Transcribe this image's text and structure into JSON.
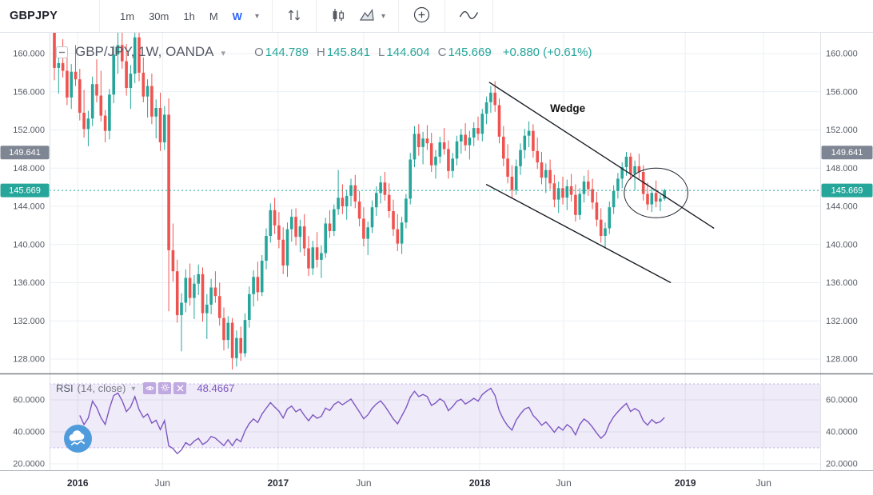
{
  "toolbar": {
    "symbol": "GBPJPY",
    "intervals": [
      "1m",
      "30m",
      "1h",
      "M",
      "W"
    ],
    "active_interval": "W"
  },
  "legend": {
    "title": "GBP/JPY, 1W, OANDA",
    "open_label": "O",
    "open_value": "144.789",
    "high_label": "H",
    "high_value": "145.841",
    "low_label": "L",
    "low_value": "144.604",
    "close_label": "C",
    "close_value": "145.669",
    "change": "+0.880 (+0.61%)"
  },
  "rsi_legend": {
    "title": "RSI",
    "params": "(14, close)",
    "value": "48.4667"
  },
  "chart_data": {
    "type": "candlestick",
    "symbol": "GBP/JPY",
    "timeframe": "1W",
    "exchange": "OANDA",
    "title": "GBP/JPY 1W candlestick chart with falling wedge annotation and RSI(14)",
    "colors": {
      "up": "#26a69a",
      "down": "#ef5350",
      "rsi": "#7e57c2",
      "current_line": "#26a69a",
      "grid": "#eceff3"
    },
    "price_axis": {
      "ticks": [
        160,
        156,
        152,
        148,
        144,
        140,
        136,
        132,
        128
      ],
      "decimals": 3
    },
    "current_price": 145.669,
    "price_badges": [
      {
        "label": "149.641",
        "price": 149.641,
        "color": "#7f8693"
      },
      {
        "label": "145.669",
        "price": 145.669,
        "color": "#26a69a"
      }
    ],
    "time_ticks": [
      {
        "label": "2016",
        "i": 5.5,
        "major": true
      },
      {
        "label": "Jun",
        "i": 25.5,
        "major": false
      },
      {
        "label": "2017",
        "i": 52.8,
        "major": true
      },
      {
        "label": "Jun",
        "i": 73.0,
        "major": false
      },
      {
        "label": "2018",
        "i": 100.4,
        "major": true
      },
      {
        "label": "Jun",
        "i": 120.2,
        "major": false
      },
      {
        "label": "2019",
        "i": 148.9,
        "major": true
      },
      {
        "label": "Jun",
        "i": 167.4,
        "major": false
      }
    ],
    "annotations": {
      "wedge_label": "Wedge",
      "wedge_label_pos": {
        "i": 117.0,
        "p": 153.9
      },
      "wedge_upper": [
        {
          "i": 102.6,
          "p": 157.0
        },
        {
          "i": 155.7,
          "p": 141.7
        }
      ],
      "wedge_lower": [
        {
          "i": 101.9,
          "p": 146.3
        },
        {
          "i": 145.5,
          "p": 136.0
        }
      ],
      "ellipse": {
        "i": 142.0,
        "p": 145.4,
        "ri": 7.5,
        "rp": 2.6
      }
    },
    "rsi": {
      "period": 14,
      "source": "close",
      "last_value": 48.4667,
      "band": [
        30,
        70
      ],
      "ticks": [
        60,
        40,
        20
      ],
      "decimals": 4
    },
    "ohlc": [
      [
        162.8,
        163.9,
        157.2,
        158.5
      ],
      [
        158.5,
        160.2,
        155.8,
        159.0
      ],
      [
        159.0,
        161.5,
        157.5,
        158.2
      ],
      [
        158.2,
        159.8,
        154.6,
        155.4
      ],
      [
        155.4,
        158.9,
        154.2,
        158.1
      ],
      [
        158.1,
        160.9,
        156.6,
        157.3
      ],
      [
        157.3,
        158.4,
        153.0,
        153.8
      ],
      [
        153.8,
        156.2,
        151.2,
        152.1
      ],
      [
        152.1,
        154.0,
        150.3,
        153.2
      ],
      [
        153.2,
        157.6,
        152.4,
        156.8
      ],
      [
        156.8,
        159.4,
        154.9,
        155.6
      ],
      [
        155.6,
        158.2,
        152.9,
        153.5
      ],
      [
        153.5,
        154.1,
        150.7,
        151.9
      ],
      [
        151.9,
        156.3,
        151.0,
        155.7
      ],
      [
        155.7,
        160.8,
        154.8,
        159.9
      ],
      [
        159.9,
        162.6,
        157.9,
        160.9
      ],
      [
        160.9,
        163.2,
        158.4,
        159.2
      ],
      [
        159.2,
        161.0,
        155.6,
        156.4
      ],
      [
        156.4,
        158.8,
        154.2,
        157.9
      ],
      [
        157.9,
        162.8,
        156.9,
        161.7
      ],
      [
        161.7,
        162.4,
        157.1,
        158.0
      ],
      [
        158.0,
        159.6,
        154.9,
        155.5
      ],
      [
        155.5,
        157.3,
        153.3,
        156.6
      ],
      [
        156.6,
        157.9,
        152.6,
        153.4
      ],
      [
        153.4,
        155.2,
        151.1,
        154.3
      ],
      [
        154.3,
        155.9,
        149.8,
        150.7
      ],
      [
        150.7,
        154.5,
        149.9,
        153.6
      ],
      [
        153.6,
        155.3,
        133.0,
        139.4
      ],
      [
        139.4,
        142.2,
        136.1,
        137.2
      ],
      [
        137.2,
        138.4,
        131.8,
        132.6
      ],
      [
        132.6,
        134.9,
        128.8,
        133.9
      ],
      [
        133.9,
        137.4,
        132.9,
        136.5
      ],
      [
        136.5,
        138.0,
        133.6,
        134.4
      ],
      [
        134.4,
        136.8,
        132.2,
        135.9
      ],
      [
        135.9,
        137.9,
        134.7,
        136.9
      ],
      [
        136.9,
        137.6,
        131.9,
        132.8
      ],
      [
        132.8,
        134.8,
        130.1,
        133.7
      ],
      [
        133.7,
        136.4,
        132.7,
        135.5
      ],
      [
        135.5,
        137.2,
        133.9,
        134.6
      ],
      [
        134.6,
        136.0,
        131.5,
        132.3
      ],
      [
        132.3,
        133.4,
        128.9,
        130.0
      ],
      [
        130.0,
        132.5,
        129.1,
        131.8
      ],
      [
        131.8,
        132.3,
        126.9,
        128.1
      ],
      [
        128.1,
        131.0,
        127.2,
        130.2
      ],
      [
        130.2,
        131.4,
        127.8,
        128.6
      ],
      [
        128.6,
        132.8,
        128.2,
        132.1
      ],
      [
        132.1,
        135.6,
        131.3,
        134.8
      ],
      [
        134.8,
        137.3,
        133.5,
        136.6
      ],
      [
        136.6,
        138.2,
        134.1,
        135.0
      ],
      [
        135.0,
        138.9,
        134.6,
        138.3
      ],
      [
        138.3,
        141.7,
        137.4,
        140.9
      ],
      [
        140.9,
        144.3,
        140.2,
        143.6
      ],
      [
        143.6,
        144.9,
        141.1,
        142.0
      ],
      [
        142.0,
        143.4,
        139.6,
        140.5
      ],
      [
        140.5,
        141.8,
        136.9,
        137.8
      ],
      [
        137.8,
        142.3,
        136.6,
        141.6
      ],
      [
        141.6,
        143.7,
        140.3,
        142.9
      ],
      [
        142.9,
        143.8,
        139.9,
        140.8
      ],
      [
        140.8,
        142.6,
        139.2,
        141.9
      ],
      [
        141.9,
        143.2,
        138.8,
        139.6
      ],
      [
        139.6,
        140.9,
        136.7,
        137.5
      ],
      [
        137.5,
        140.4,
        136.8,
        139.7
      ],
      [
        139.7,
        141.3,
        137.6,
        138.4
      ],
      [
        138.4,
        139.9,
        136.5,
        139.1
      ],
      [
        139.1,
        142.8,
        138.6,
        142.2
      ],
      [
        142.2,
        143.6,
        140.7,
        141.4
      ],
      [
        141.4,
        144.2,
        140.9,
        143.7
      ],
      [
        143.7,
        147.8,
        143.1,
        144.9
      ],
      [
        144.9,
        146.3,
        143.2,
        144.0
      ],
      [
        144.0,
        145.7,
        142.6,
        145.1
      ],
      [
        145.1,
        146.9,
        144.0,
        146.2
      ],
      [
        146.2,
        147.3,
        143.8,
        144.5
      ],
      [
        144.5,
        145.6,
        141.9,
        142.7
      ],
      [
        142.7,
        143.9,
        139.8,
        140.6
      ],
      [
        140.6,
        142.4,
        138.9,
        141.8
      ],
      [
        141.8,
        144.6,
        141.2,
        143.9
      ],
      [
        143.9,
        146.1,
        143.0,
        145.4
      ],
      [
        145.4,
        147.2,
        144.3,
        146.5
      ],
      [
        146.5,
        147.6,
        144.6,
        145.2
      ],
      [
        145.2,
        146.4,
        142.8,
        143.5
      ],
      [
        143.5,
        144.7,
        140.9,
        141.6
      ],
      [
        141.6,
        143.2,
        139.3,
        140.1
      ],
      [
        140.1,
        142.9,
        139.0,
        142.3
      ],
      [
        142.3,
        145.3,
        141.7,
        144.8
      ],
      [
        144.8,
        149.6,
        144.2,
        148.9
      ],
      [
        148.9,
        152.4,
        148.1,
        151.6
      ],
      [
        151.6,
        152.6,
        149.3,
        150.2
      ],
      [
        150.2,
        151.8,
        148.4,
        151.1
      ],
      [
        151.1,
        152.5,
        149.9,
        150.6
      ],
      [
        150.6,
        151.7,
        147.6,
        148.3
      ],
      [
        148.3,
        149.9,
        146.9,
        149.2
      ],
      [
        149.2,
        151.3,
        148.5,
        150.7
      ],
      [
        150.7,
        152.2,
        149.4,
        150.0
      ],
      [
        150.0,
        150.9,
        146.9,
        147.7
      ],
      [
        147.7,
        149.6,
        147.0,
        149.0
      ],
      [
        149.0,
        151.4,
        148.3,
        150.8
      ],
      [
        150.8,
        152.1,
        149.5,
        151.5
      ],
      [
        151.5,
        152.7,
        149.8,
        150.4
      ],
      [
        150.4,
        151.9,
        148.9,
        151.2
      ],
      [
        151.2,
        152.8,
        150.3,
        152.2
      ],
      [
        152.2,
        153.4,
        150.9,
        151.6
      ],
      [
        151.6,
        154.2,
        150.8,
        153.7
      ],
      [
        153.7,
        155.5,
        152.6,
        154.9
      ],
      [
        154.9,
        156.6,
        153.8,
        155.9
      ],
      [
        155.9,
        157.1,
        153.9,
        154.6
      ],
      [
        154.6,
        155.3,
        150.6,
        151.3
      ],
      [
        151.3,
        152.4,
        148.2,
        149.0
      ],
      [
        149.0,
        150.5,
        146.4,
        147.1
      ],
      [
        147.1,
        148.3,
        144.9,
        145.7
      ],
      [
        145.7,
        148.9,
        145.2,
        148.2
      ],
      [
        148.2,
        150.6,
        147.3,
        149.9
      ],
      [
        149.9,
        152.1,
        149.0,
        151.4
      ],
      [
        151.4,
        152.9,
        150.2,
        151.9
      ],
      [
        151.9,
        152.6,
        149.1,
        149.8
      ],
      [
        149.8,
        151.2,
        147.9,
        148.6
      ],
      [
        148.6,
        149.7,
        146.3,
        147.0
      ],
      [
        147.0,
        148.5,
        145.4,
        147.8
      ],
      [
        147.8,
        148.9,
        145.8,
        146.4
      ],
      [
        146.4,
        147.3,
        143.9,
        144.7
      ],
      [
        144.7,
        146.6,
        143.3,
        145.9
      ],
      [
        145.9,
        147.1,
        144.2,
        144.9
      ],
      [
        144.9,
        146.8,
        143.6,
        146.1
      ],
      [
        146.1,
        147.4,
        144.5,
        145.2
      ],
      [
        145.2,
        146.3,
        142.4,
        143.1
      ],
      [
        143.1,
        145.9,
        142.6,
        145.3
      ],
      [
        145.3,
        147.2,
        144.4,
        146.6
      ],
      [
        146.6,
        147.8,
        145.1,
        145.8
      ],
      [
        145.8,
        146.9,
        143.7,
        144.4
      ],
      [
        144.4,
        145.5,
        141.9,
        142.6
      ],
      [
        142.6,
        143.8,
        140.2,
        140.9
      ],
      [
        140.9,
        142.3,
        139.6,
        141.7
      ],
      [
        141.7,
        144.5,
        141.1,
        143.9
      ],
      [
        143.9,
        146.2,
        143.2,
        145.6
      ],
      [
        145.6,
        147.5,
        144.8,
        146.9
      ],
      [
        146.9,
        148.6,
        145.9,
        148.1
      ],
      [
        148.1,
        149.7,
        147.2,
        149.2
      ],
      [
        149.2,
        149.6,
        146.8,
        147.4
      ],
      [
        147.4,
        148.8,
        145.7,
        148.2
      ],
      [
        148.2,
        149.5,
        146.9,
        147.6
      ],
      [
        147.6,
        148.3,
        144.6,
        145.3
      ],
      [
        145.3,
        146.5,
        143.6,
        144.2
      ],
      [
        144.2,
        145.9,
        143.4,
        145.4
      ],
      [
        145.4,
        146.7,
        143.9,
        144.5
      ],
      [
        144.5,
        145.2,
        143.5,
        144.8
      ],
      [
        144.789,
        145.841,
        144.604,
        145.669
      ]
    ]
  }
}
